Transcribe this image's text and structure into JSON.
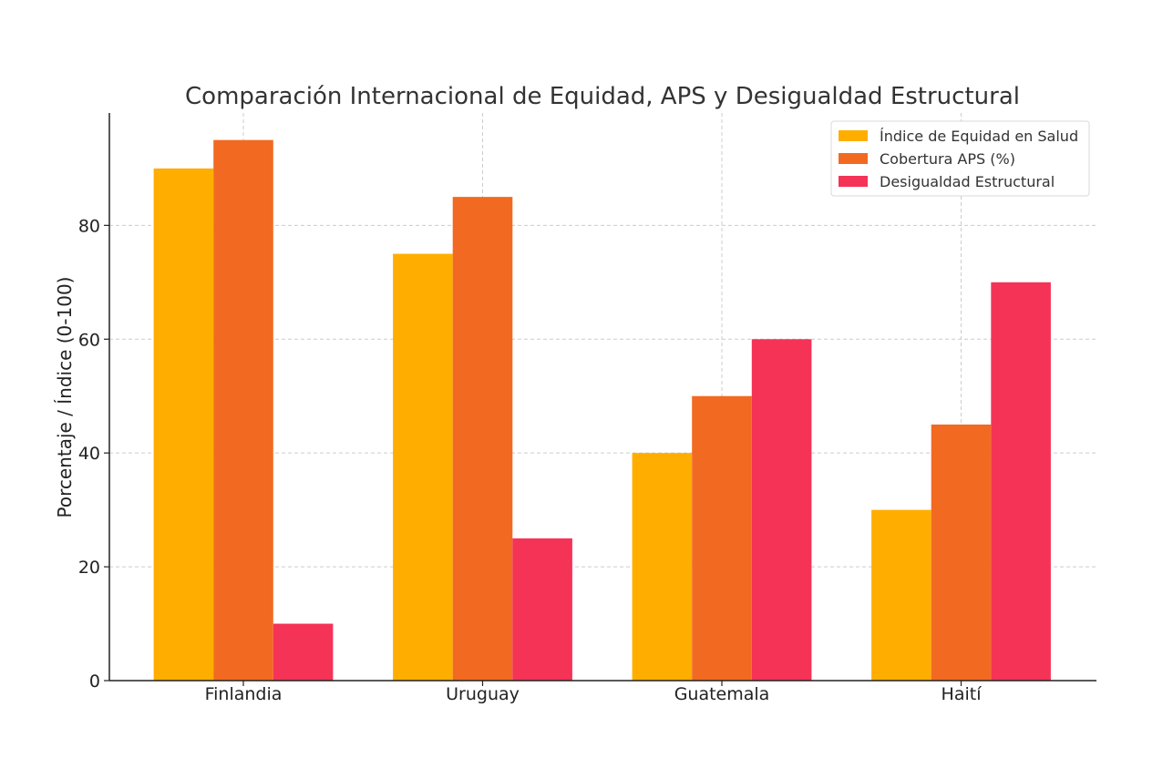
{
  "chart_data": {
    "type": "bar",
    "title": "Comparación Internacional de Equidad, APS y Desigualdad Estructural",
    "xlabel": "",
    "ylabel": "Porcentaje / Índice (0-100)",
    "categories": [
      "Finlandia",
      "Uruguay",
      "Guatemala",
      "Haití"
    ],
    "series": [
      {
        "name": "Índice de Equidad en Salud",
        "values": [
          90,
          75,
          40,
          30
        ],
        "color": "#FFAE00"
      },
      {
        "name": "Cobertura APS (%)",
        "values": [
          95,
          85,
          50,
          45
        ],
        "color": "#F26A21"
      },
      {
        "name": "Desigualdad Estructural",
        "values": [
          10,
          25,
          60,
          70
        ],
        "color": "#F43357"
      }
    ],
    "ylim": [
      0,
      99.75
    ],
    "yticks": [
      0,
      20,
      40,
      60,
      80
    ],
    "grid": true,
    "legend_position": "top-right"
  }
}
